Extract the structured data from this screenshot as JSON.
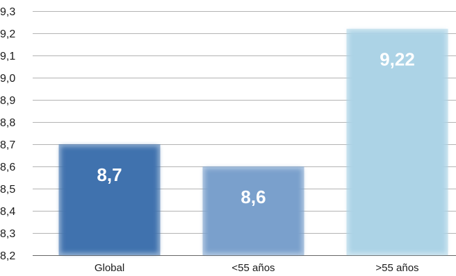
{
  "chart_data": {
    "type": "bar",
    "title": "",
    "xlabel": "",
    "ylabel": "",
    "categories": [
      "Global",
      "<55 años",
      ">55 años"
    ],
    "values": [
      8.7,
      8.6,
      9.22
    ],
    "data_labels": [
      "8,7",
      "8,6",
      "9,22"
    ],
    "ylim": [
      8.2,
      9.3
    ],
    "y_ticks": [
      8.2,
      8.3,
      8.4,
      8.5,
      8.6,
      8.7,
      8.8,
      8.9,
      9.0,
      9.1,
      9.2,
      9.3
    ],
    "y_tick_labels": [
      "8,2",
      "8,3",
      "8,4",
      "8,5",
      "8,6",
      "8,7",
      "8,8",
      "8,9",
      "9,0",
      "9,1",
      "9,2",
      "9,3"
    ],
    "grid": true,
    "legend": "none",
    "colors": {
      "bars": [
        "#3f72ae",
        "#7aa0cc",
        "#acd3e6"
      ],
      "grid": "#b3b3b3"
    }
  }
}
